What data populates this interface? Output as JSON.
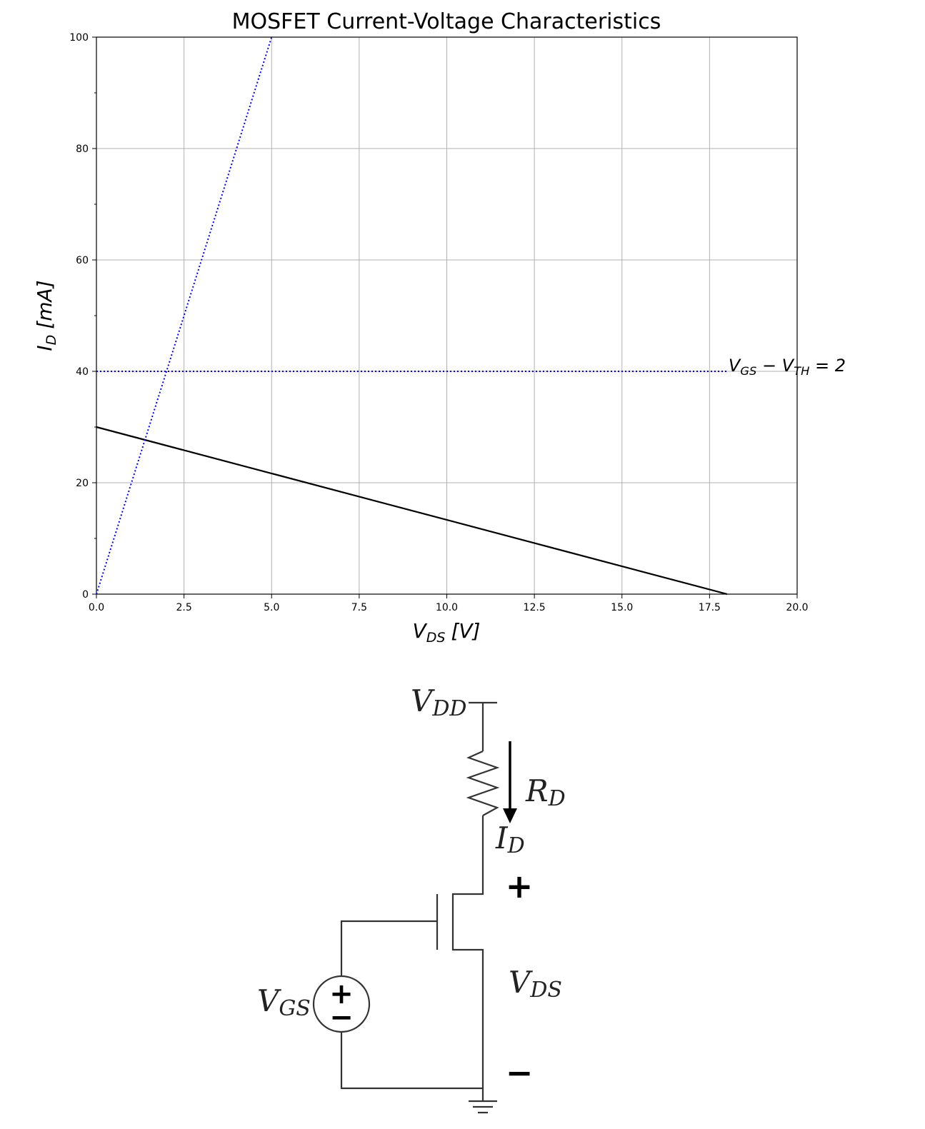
{
  "chart_data": {
    "type": "line",
    "title": "MOSFET Current-Voltage Characteristics",
    "xlabel": {
      "base": "V",
      "sub": "DS",
      "unit": "[V]"
    },
    "ylabel": {
      "base": "I",
      "sub": "D",
      "unit": "[mA]"
    },
    "xlim": [
      0,
      20
    ],
    "ylim": [
      0,
      100
    ],
    "xticks": [
      "0.0",
      "2.5",
      "5.0",
      "7.5",
      "10.0",
      "12.5",
      "15.0",
      "17.5",
      "20.0"
    ],
    "yticks": [
      "0",
      "20",
      "40",
      "60",
      "80",
      "100"
    ],
    "grid": true,
    "series": [
      {
        "style": "solid",
        "color": "#000000",
        "x": [
          0,
          18
        ],
        "y": [
          30,
          0
        ]
      },
      {
        "style": "dotted",
        "color": "#0000ff",
        "x": [
          0,
          5
        ],
        "y": [
          0,
          100
        ]
      },
      {
        "style": "dotted",
        "color": "#0000ff",
        "x": [
          0,
          18
        ],
        "y": [
          40,
          40
        ]
      }
    ],
    "annotations": [
      {
        "text_parts": [
          "V",
          "GS",
          " − V",
          "TH",
          " = 2"
        ],
        "x": 18,
        "y": 40
      }
    ]
  },
  "circuit": {
    "vdd": {
      "base": "V",
      "sub": "DD"
    },
    "rd": {
      "base": "R",
      "sub": "D"
    },
    "id": {
      "base": "I",
      "sub": "D"
    },
    "vgs": {
      "base": "V",
      "sub": "GS"
    },
    "vds": {
      "base": "V",
      "sub": "DS"
    },
    "plus": "+",
    "minus": "−",
    "src_plus": "+",
    "src_minus": "−"
  }
}
